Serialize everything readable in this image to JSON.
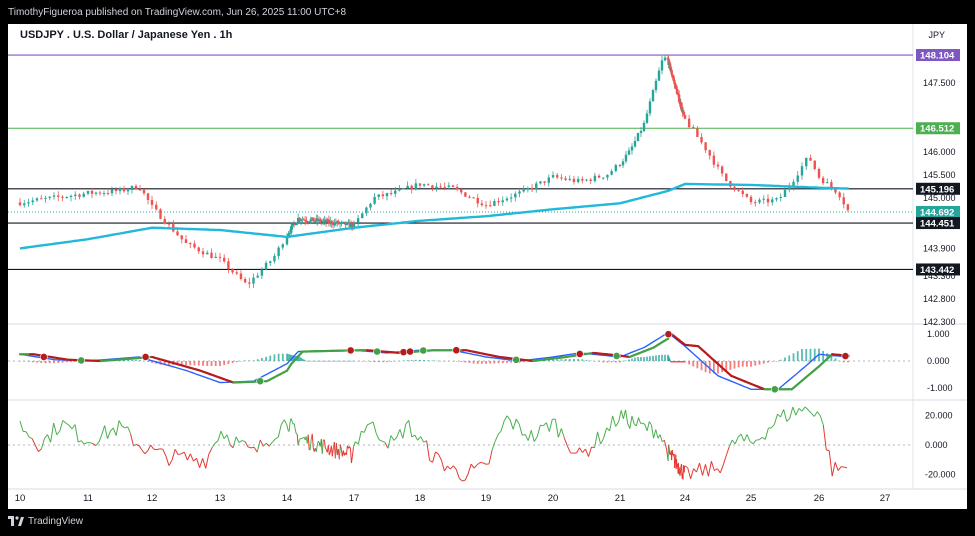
{
  "header": {
    "publisher_text": "TimothyFigueroa published on TradingView.com, Jun 26, 2025 11:00 UTC+8"
  },
  "chart_header": {
    "title": "USDJPY . U.S. Dollar / Japanese Yen . 1h",
    "currency": "JPY"
  },
  "footer": {
    "brand": "TradingView",
    "logo_icon": "tradingview-logo-icon"
  },
  "colors": {
    "bull": "#26a69a",
    "bear": "#ef5350",
    "ema": "#22b8d8",
    "macd_fast": "#2962ff",
    "macd_up": "#43a047",
    "macd_down": "#b71c1c",
    "osc_up": "#4caf50",
    "osc_down": "#e53935",
    "level_purple": "#7e57c2",
    "level_green": "#4caf50",
    "level_black": "#131722"
  },
  "chart_data": [
    {
      "type": "candlestick",
      "title": "USDJPY . U.S. Dollar / Japanese Yen . 1h",
      "x_ticks": [
        "10",
        "11",
        "12",
        "13",
        "14",
        "17",
        "18",
        "19",
        "20",
        "21",
        "24",
        "25",
        "26",
        "27"
      ],
      "y_ticks": [
        "147.500",
        "146.000",
        "145.500",
        "145.000",
        "143.900",
        "143.300",
        "142.800",
        "142.300"
      ],
      "ylim": [
        142.3,
        148.3
      ],
      "grid": false,
      "path_anchors": [
        {
          "day": 10,
          "price": 144.9
        },
        {
          "day": 10.5,
          "price": 145.0
        },
        {
          "day": 11,
          "price": 145.1
        },
        {
          "day": 11.5,
          "price": 145.15
        },
        {
          "day": 11.8,
          "price": 145.25
        },
        {
          "day": 12,
          "price": 144.8
        },
        {
          "day": 12.5,
          "price": 144.0
        },
        {
          "day": 13,
          "price": 143.65
        },
        {
          "day": 13.4,
          "price": 143.1
        },
        {
          "day": 13.8,
          "price": 143.7
        },
        {
          "day": 14,
          "price": 144.2
        },
        {
          "day": 14.5,
          "price": 144.55
        },
        {
          "day": 17,
          "price": 144.4
        },
        {
          "day": 17.3,
          "price": 145.0
        },
        {
          "day": 17.6,
          "price": 145.1
        },
        {
          "day": 18,
          "price": 145.3
        },
        {
          "day": 18.5,
          "price": 145.2
        },
        {
          "day": 19,
          "price": 144.85
        },
        {
          "day": 19.5,
          "price": 145.1
        },
        {
          "day": 20,
          "price": 145.45
        },
        {
          "day": 20.4,
          "price": 145.35
        },
        {
          "day": 20.8,
          "price": 145.5
        },
        {
          "day": 21.2,
          "price": 146.0
        },
        {
          "day": 21.5,
          "price": 146.6
        },
        {
          "day": 21.8,
          "price": 147.7
        },
        {
          "day": 21.9,
          "price": 148.05
        },
        {
          "day": 24,
          "price": 146.7
        },
        {
          "day": 24.3,
          "price": 146.1
        },
        {
          "day": 24.6,
          "price": 145.4
        },
        {
          "day": 25,
          "price": 144.9
        },
        {
          "day": 25.4,
          "price": 144.95
        },
        {
          "day": 25.6,
          "price": 145.35
        },
        {
          "day": 25.85,
          "price": 145.9
        },
        {
          "day": 26,
          "price": 145.45
        },
        {
          "day": 26.3,
          "price": 145.1
        },
        {
          "day": 26.45,
          "price": 144.69
        }
      ],
      "ema_anchors": [
        {
          "day": 10,
          "price": 143.9
        },
        {
          "day": 11,
          "price": 144.1
        },
        {
          "day": 12,
          "price": 144.35
        },
        {
          "day": 13,
          "price": 144.3
        },
        {
          "day": 14,
          "price": 144.15
        },
        {
          "day": 17,
          "price": 144.35
        },
        {
          "day": 18,
          "price": 144.5
        },
        {
          "day": 19,
          "price": 144.6
        },
        {
          "day": 20,
          "price": 144.75
        },
        {
          "day": 21,
          "price": 144.88
        },
        {
          "day": 22,
          "price": 145.15
        },
        {
          "day": 24,
          "price": 145.3
        },
        {
          "day": 25,
          "price": 145.28
        },
        {
          "day": 26,
          "price": 145.22
        },
        {
          "day": 26.45,
          "price": 145.2
        }
      ],
      "levels": [
        {
          "price": 148.104,
          "label": "148.104",
          "color": "#7e57c2",
          "style": "solid"
        },
        {
          "price": 146.512,
          "label": "146.512",
          "color": "#4caf50",
          "style": "solid"
        },
        {
          "price": 145.196,
          "label": "145.196",
          "color": "#131722",
          "style": "solid"
        },
        {
          "price": 144.692,
          "label": "144.692",
          "color": "#26a69a",
          "style": "dotted"
        },
        {
          "price": 144.451,
          "label": "144.451",
          "color": "#131722",
          "style": "solid"
        },
        {
          "price": 143.442,
          "label": "143.442",
          "color": "#131722",
          "style": "solid"
        }
      ]
    },
    {
      "type": "line",
      "panel": "macd",
      "y_ticks": [
        "1.000",
        "0.000",
        "-1.000"
      ],
      "ylim": [
        -1.3,
        1.3
      ],
      "macd_anchors": [
        {
          "day": 10,
          "value": 0.25
        },
        {
          "day": 10.5,
          "value": 0.05
        },
        {
          "day": 11,
          "value": 0.0
        },
        {
          "day": 11.8,
          "value": 0.15
        },
        {
          "day": 12.5,
          "value": -0.35
        },
        {
          "day": 13,
          "value": -0.8
        },
        {
          "day": 13.5,
          "value": -0.75
        },
        {
          "day": 14,
          "value": -0.1
        },
        {
          "day": 14.5,
          "value": 0.35
        },
        {
          "day": 17,
          "value": 0.4
        },
        {
          "day": 17.5,
          "value": 0.3
        },
        {
          "day": 18,
          "value": 0.4
        },
        {
          "day": 18.5,
          "value": 0.4
        },
        {
          "day": 19,
          "value": 0.15
        },
        {
          "day": 19.5,
          "value": 0.0
        },
        {
          "day": 20,
          "value": 0.15
        },
        {
          "day": 20.4,
          "value": 0.3
        },
        {
          "day": 21,
          "value": 0.15
        },
        {
          "day": 21.5,
          "value": 0.5
        },
        {
          "day": 22,
          "value": 1.05
        },
        {
          "day": 24,
          "value": 0.55
        },
        {
          "day": 24.5,
          "value": -0.55
        },
        {
          "day": 25,
          "value": -1.05
        },
        {
          "day": 25.4,
          "value": -1.05
        },
        {
          "day": 25.8,
          "value": -0.2
        },
        {
          "day": 26,
          "value": 0.25
        },
        {
          "day": 26.45,
          "value": 0.15
        }
      ],
      "signal_markers": [
        {
          "day": 10.35,
          "kind": "down"
        },
        {
          "day": 10.9,
          "kind": "up"
        },
        {
          "day": 11.9,
          "kind": "down"
        },
        {
          "day": 13.6,
          "kind": "up"
        },
        {
          "day": 16.85,
          "kind": "down"
        },
        {
          "day": 17.35,
          "kind": "up"
        },
        {
          "day": 17.75,
          "kind": "down"
        },
        {
          "day": 17.85,
          "kind": "down"
        },
        {
          "day": 18.05,
          "kind": "up"
        },
        {
          "day": 18.55,
          "kind": "down"
        },
        {
          "day": 19.45,
          "kind": "up"
        },
        {
          "day": 20.4,
          "kind": "down"
        },
        {
          "day": 20.95,
          "kind": "up"
        },
        {
          "day": 22.05,
          "kind": "down"
        },
        {
          "day": 25.35,
          "kind": "up"
        },
        {
          "day": 26.4,
          "kind": "down"
        }
      ]
    },
    {
      "type": "line",
      "panel": "oscillator",
      "y_ticks": [
        "20.000",
        "0.000",
        "-20.000"
      ],
      "ylim": [
        -28,
        28
      ],
      "osc_anchors": [
        {
          "day": 10,
          "value": 14
        },
        {
          "day": 10.3,
          "value": 0
        },
        {
          "day": 10.6,
          "value": 15
        },
        {
          "day": 11,
          "value": 3
        },
        {
          "day": 11.5,
          "value": 12
        },
        {
          "day": 11.8,
          "value": 0
        },
        {
          "day": 12.2,
          "value": -8
        },
        {
          "day": 12.8,
          "value": -10
        },
        {
          "day": 13,
          "value": 10
        },
        {
          "day": 13.5,
          "value": -6
        },
        {
          "day": 14,
          "value": 17
        },
        {
          "day": 14.5,
          "value": 5
        },
        {
          "day": 16.9,
          "value": -7
        },
        {
          "day": 17.2,
          "value": 15
        },
        {
          "day": 17.6,
          "value": 0
        },
        {
          "day": 17.8,
          "value": 14
        },
        {
          "day": 18.2,
          "value": -8
        },
        {
          "day": 18.6,
          "value": -20
        },
        {
          "day": 19,
          "value": -16
        },
        {
          "day": 19.3,
          "value": 18
        },
        {
          "day": 19.7,
          "value": 5
        },
        {
          "day": 20,
          "value": 16
        },
        {
          "day": 20.4,
          "value": -8
        },
        {
          "day": 20.7,
          "value": 5
        },
        {
          "day": 21,
          "value": 20
        },
        {
          "day": 21.5,
          "value": 12
        },
        {
          "day": 21.8,
          "value": 10
        },
        {
          "day": 22,
          "value": -5
        },
        {
          "day": 24,
          "value": -20
        },
        {
          "day": 24.5,
          "value": -16
        },
        {
          "day": 24.8,
          "value": 5
        },
        {
          "day": 25,
          "value": 0
        },
        {
          "day": 25.4,
          "value": 18
        },
        {
          "day": 25.7,
          "value": 24
        },
        {
          "day": 26,
          "value": 24
        },
        {
          "day": 26.2,
          "value": -17
        },
        {
          "day": 26.45,
          "value": -15
        }
      ]
    }
  ]
}
